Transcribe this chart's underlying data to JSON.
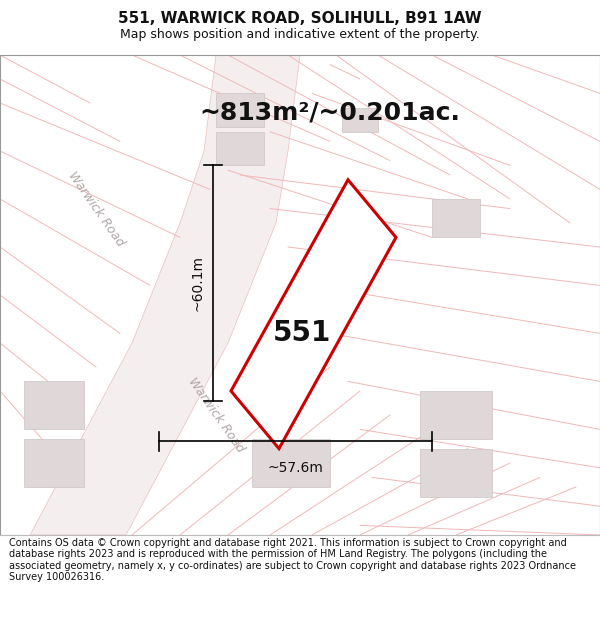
{
  "title": "551, WARWICK ROAD, SOLIHULL, B91 1AW",
  "subtitle": "Map shows position and indicative extent of the property.",
  "area_label": "~813m²/~0.201ac.",
  "plot_number": "551",
  "dim_height": "~60.1m",
  "dim_width": "~57.6m",
  "footer": "Contains OS data © Crown copyright and database right 2021. This information is subject to Crown copyright and database rights 2023 and is reproduced with the permission of HM Land Registry. The polygons (including the associated geometry, namely x, y co-ordinates) are subject to Crown copyright and database rights 2023 Ordnance Survey 100026316.",
  "bg_color": "#ffffff",
  "map_bg": "#ffffff",
  "road_color": "#f0c8c8",
  "building_color": "#e0d8d8",
  "plot_color": "#cc0000",
  "text_color": "#111111",
  "road_label_color": "#b0a0a0",
  "title_fontsize": 11,
  "subtitle_fontsize": 9,
  "area_fontsize": 18,
  "plot_num_fontsize": 20,
  "dim_fontsize": 10,
  "footer_fontsize": 7.0
}
